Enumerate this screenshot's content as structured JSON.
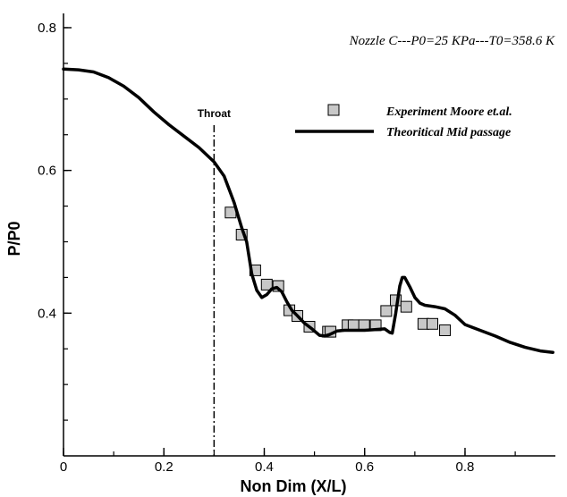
{
  "chart_data": {
    "type": "line",
    "title": "",
    "xlabel": "Non Dim (X/L)",
    "ylabel": "P/P0",
    "xlim": [
      0,
      0.98
    ],
    "ylim": [
      0.2,
      0.82
    ],
    "x_ticks": [
      0,
      0.2,
      0.4,
      0.6,
      0.8
    ],
    "x_tick_labels": [
      "0",
      "0.2",
      "0.4",
      "0.6",
      "0.8"
    ],
    "y_ticks": [
      0.4,
      0.6,
      0.8
    ],
    "y_tick_labels": [
      "0.4",
      "0.6",
      "0.8"
    ],
    "grid": false,
    "legend_position": "top-right",
    "annotation": "Nozzle C---P0=25 KPa---T0=358.6 K",
    "throat": {
      "x": 0.3,
      "label": "Throat"
    },
    "series": [
      {
        "name": "Experiment Moore et.al.",
        "kind": "scatter",
        "color": "#c8c8c8",
        "points": [
          [
            0.333,
            0.541
          ],
          [
            0.355,
            0.51
          ],
          [
            0.382,
            0.46
          ],
          [
            0.405,
            0.44
          ],
          [
            0.428,
            0.438
          ],
          [
            0.45,
            0.404
          ],
          [
            0.466,
            0.396
          ],
          [
            0.49,
            0.381
          ],
          [
            0.527,
            0.374
          ],
          [
            0.532,
            0.374
          ],
          [
            0.566,
            0.383
          ],
          [
            0.578,
            0.383
          ],
          [
            0.599,
            0.383
          ],
          [
            0.622,
            0.383
          ],
          [
            0.643,
            0.403
          ],
          [
            0.662,
            0.418
          ],
          [
            0.683,
            0.409
          ],
          [
            0.717,
            0.385
          ],
          [
            0.735,
            0.385
          ],
          [
            0.76,
            0.376
          ]
        ]
      },
      {
        "name": "Theoritical Mid passage",
        "kind": "line",
        "color": "#000000",
        "points": [
          [
            0.0,
            0.742
          ],
          [
            0.03,
            0.741
          ],
          [
            0.06,
            0.738
          ],
          [
            0.09,
            0.73
          ],
          [
            0.12,
            0.718
          ],
          [
            0.15,
            0.702
          ],
          [
            0.18,
            0.682
          ],
          [
            0.21,
            0.664
          ],
          [
            0.24,
            0.648
          ],
          [
            0.27,
            0.632
          ],
          [
            0.3,
            0.612
          ],
          [
            0.32,
            0.592
          ],
          [
            0.34,
            0.555
          ],
          [
            0.355,
            0.52
          ],
          [
            0.365,
            0.5
          ],
          [
            0.375,
            0.455
          ],
          [
            0.385,
            0.432
          ],
          [
            0.395,
            0.422
          ],
          [
            0.405,
            0.426
          ],
          [
            0.415,
            0.434
          ],
          [
            0.425,
            0.436
          ],
          [
            0.435,
            0.43
          ],
          [
            0.445,
            0.416
          ],
          [
            0.455,
            0.404
          ],
          [
            0.465,
            0.397
          ],
          [
            0.48,
            0.386
          ],
          [
            0.495,
            0.378
          ],
          [
            0.51,
            0.369
          ],
          [
            0.52,
            0.368
          ],
          [
            0.53,
            0.37
          ],
          [
            0.545,
            0.375
          ],
          [
            0.56,
            0.376
          ],
          [
            0.58,
            0.376
          ],
          [
            0.6,
            0.376
          ],
          [
            0.62,
            0.377
          ],
          [
            0.64,
            0.378
          ],
          [
            0.65,
            0.373
          ],
          [
            0.655,
            0.372
          ],
          [
            0.662,
            0.4
          ],
          [
            0.67,
            0.438
          ],
          [
            0.675,
            0.45
          ],
          [
            0.68,
            0.45
          ],
          [
            0.69,
            0.437
          ],
          [
            0.7,
            0.422
          ],
          [
            0.71,
            0.414
          ],
          [
            0.72,
            0.411
          ],
          [
            0.74,
            0.409
          ],
          [
            0.76,
            0.406
          ],
          [
            0.78,
            0.397
          ],
          [
            0.8,
            0.384
          ],
          [
            0.83,
            0.376
          ],
          [
            0.86,
            0.368
          ],
          [
            0.89,
            0.359
          ],
          [
            0.92,
            0.352
          ],
          [
            0.95,
            0.347
          ],
          [
            0.975,
            0.345
          ]
        ]
      }
    ]
  }
}
